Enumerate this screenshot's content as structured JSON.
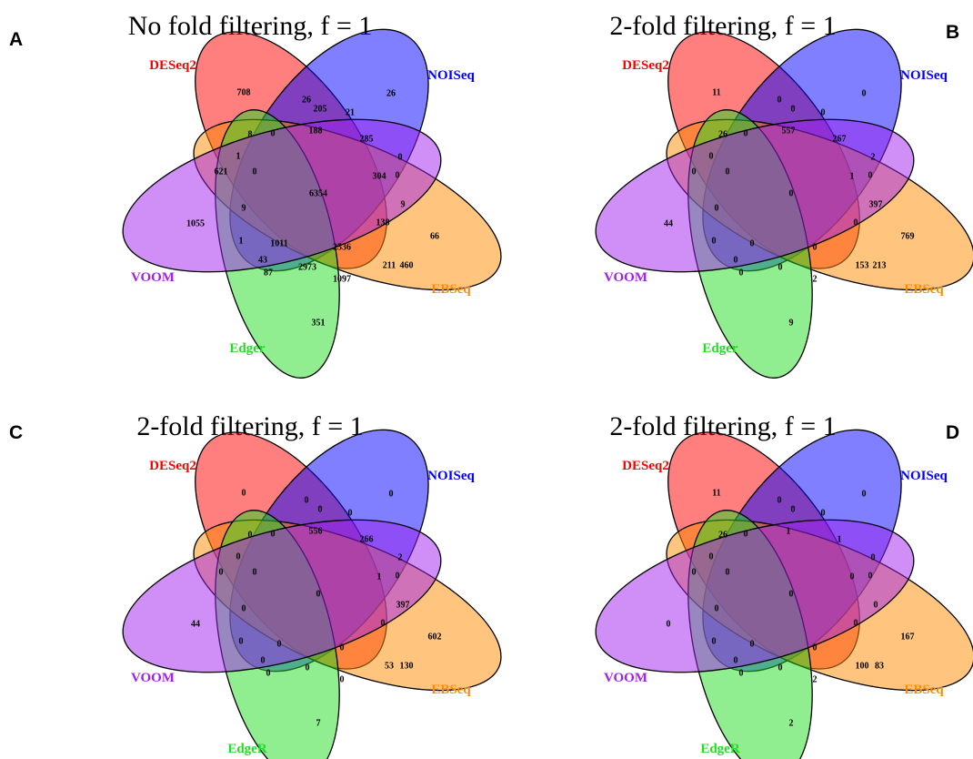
{
  "panels": [
    {
      "letter": "A",
      "title": "No fold filtering, f =  1",
      "sets": [
        {
          "label": "DESeq2",
          "color": "#ff0000"
        },
        {
          "label": "NOISeq",
          "color": "#0000ff"
        },
        {
          "label": "EBSeq",
          "color": "#ff8c00"
        },
        {
          "label": "Edger",
          "color": "#22dd22"
        },
        {
          "label": "VOOM",
          "color": "#a020f0"
        }
      ],
      "regions": [
        708,
        26,
        26,
        205,
        21,
        8,
        0,
        188,
        285,
        0,
        1,
        621,
        0,
        304,
        0,
        6354,
        9,
        9,
        138,
        1055,
        1,
        1011,
        2536,
        66,
        43,
        211,
        460,
        87,
        2973,
        1097,
        351
      ]
    },
    {
      "letter": "B",
      "title": "2-fold filtering, f =  1",
      "sets": [
        {
          "label": "DESeq2",
          "color": "#ff0000"
        },
        {
          "label": "NOISeq",
          "color": "#0000ff"
        },
        {
          "label": "EBSeq",
          "color": "#ff8c00"
        },
        {
          "label": "Edger",
          "color": "#22dd22"
        },
        {
          "label": "VOOM",
          "color": "#a020f0"
        }
      ],
      "regions": [
        11,
        0,
        0,
        0,
        0,
        26,
        0,
        557,
        267,
        2,
        0,
        0,
        0,
        1,
        0,
        0,
        397,
        0,
        0,
        44,
        0,
        0,
        0,
        769,
        0,
        153,
        213,
        0,
        0,
        2,
        9
      ]
    },
    {
      "letter": "C",
      "title": "2-fold filtering, f =  1",
      "sets": [
        {
          "label": "DESeq2",
          "color": "#ff0000"
        },
        {
          "label": "NOISeq",
          "color": "#0000ff"
        },
        {
          "label": "EBSeq",
          "color": "#ff8c00"
        },
        {
          "label": "EdgeR",
          "color": "#22dd22"
        },
        {
          "label": "VOOM",
          "color": "#a020f0"
        }
      ],
      "regions": [
        0,
        0,
        0,
        0,
        0,
        0,
        0,
        556,
        266,
        2,
        0,
        0,
        0,
        1,
        0,
        0,
        397,
        0,
        0,
        44,
        0,
        0,
        0,
        602,
        0,
        53,
        130,
        0,
        0,
        0,
        7
      ]
    },
    {
      "letter": "D",
      "title": "2-fold filtering, f =  1",
      "sets": [
        {
          "label": "DESeq2",
          "color": "#ff0000"
        },
        {
          "label": "NOISeq",
          "color": "#0000ff"
        },
        {
          "label": "EBSeq",
          "color": "#ff8c00"
        },
        {
          "label": "EdgeR",
          "color": "#22dd22"
        },
        {
          "label": "VOOM",
          "color": "#a020f0"
        }
      ],
      "regions": [
        11,
        0,
        0,
        0,
        0,
        26,
        0,
        1,
        1,
        0,
        0,
        0,
        0,
        0,
        0,
        0,
        0,
        0,
        0,
        0,
        0,
        0,
        0,
        167,
        0,
        100,
        83,
        0,
        0,
        2,
        2
      ]
    }
  ]
}
